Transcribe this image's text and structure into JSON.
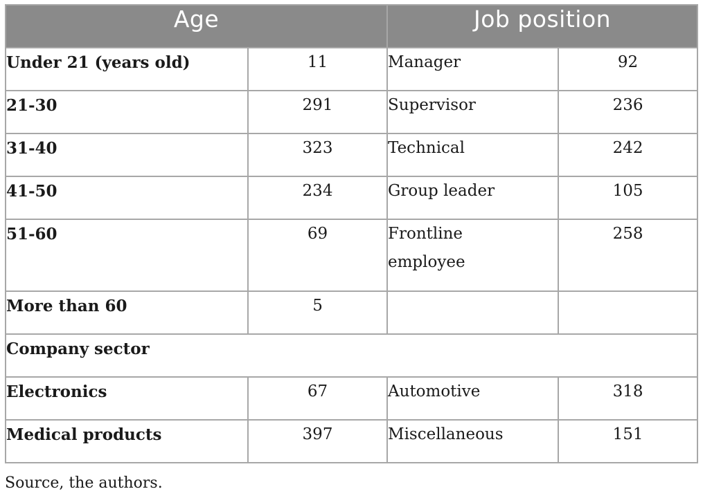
{
  "table": {
    "headers": {
      "age": "Age",
      "job_position": "Job position"
    },
    "rows": [
      {
        "age_label": "Under 21 (years old)",
        "age_value": "11",
        "position": "Manager",
        "position_value": "92"
      },
      {
        "age_label": "21-30",
        "age_value": "291",
        "position": "Supervisor",
        "position_value": "236"
      },
      {
        "age_label": "31-40",
        "age_value": "323",
        "position": "Technical",
        "position_value": "242"
      },
      {
        "age_label": "41-50",
        "age_value": "234",
        "position": "Group leader",
        "position_value": "105"
      },
      {
        "age_label": "51-60",
        "age_value": "69",
        "position": "Frontline employee",
        "position_value": "258"
      },
      {
        "age_label": "More than 60",
        "age_value": "5",
        "position": "",
        "position_value": ""
      }
    ],
    "section_label": "Company sector",
    "sector_rows": [
      {
        "left_label": "Electronics",
        "left_value": "67",
        "right_label": "Automotive",
        "right_value": "318"
      },
      {
        "left_label": "Medical products",
        "left_value": "397",
        "right_label": "Miscellaneous",
        "right_value": "151"
      }
    ]
  },
  "source_note": "Source, the authors."
}
